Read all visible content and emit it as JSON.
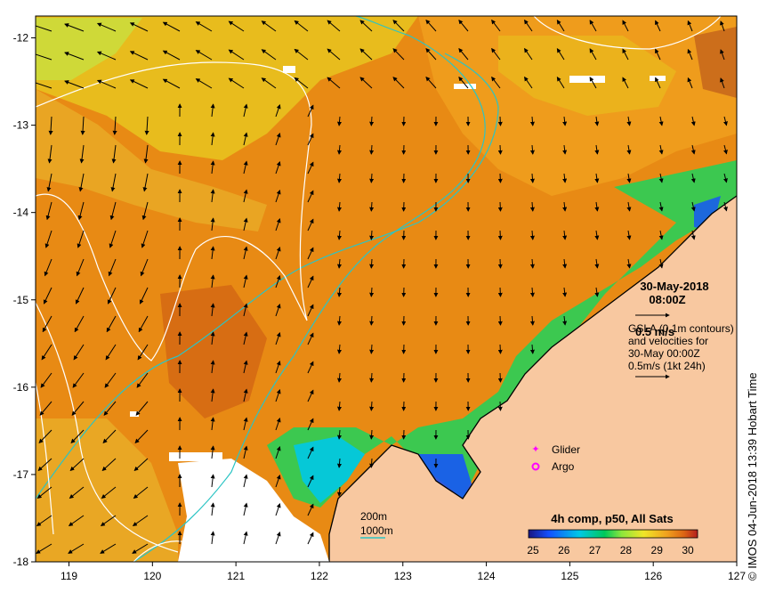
{
  "map": {
    "xticks": [
      "119",
      "120",
      "121",
      "122",
      "123",
      "124",
      "125",
      "126",
      "127"
    ],
    "yticks": [
      "-12",
      "-13",
      "-14",
      "-15",
      "-16",
      "-17",
      "-18"
    ],
    "lon_range": [
      118.6,
      127.0
    ],
    "lat_range": [
      -18.0,
      -11.75
    ]
  },
  "header": {
    "date": "30-May-2018",
    "time": "08:00Z"
  },
  "velocity": {
    "scale_label": "0.5 m/s",
    "gsla_line1": "GSLA (0.1m contours)",
    "gsla_line2": "and velocities for",
    "gsla_line3": "30-May 00:00Z",
    "gsla_line4": "0.5m/s (1kt 24h)"
  },
  "legend": {
    "glider": "Glider",
    "argo": "Argo",
    "glider_color": "#ff00ff",
    "argo_color": "#ff00ff"
  },
  "bathymetry": {
    "isobath_200": "200m",
    "isobath_1000": "1000m",
    "isobath_color": "#2bc4c4"
  },
  "colorbar": {
    "title": "4h comp, p50, All Sats",
    "ticks": [
      "25",
      "26",
      "27",
      "28",
      "29",
      "30"
    ],
    "range": [
      25,
      30
    ],
    "colors": [
      "#1a1480",
      "#1450ff",
      "#00c8e6",
      "#00c85a",
      "#8ce63c",
      "#f0e628",
      "#f0a01e",
      "#dc6414",
      "#b41e1e"
    ]
  },
  "credit": "© IMOS 04-Jun-2018 13:39 Hobart Time"
}
